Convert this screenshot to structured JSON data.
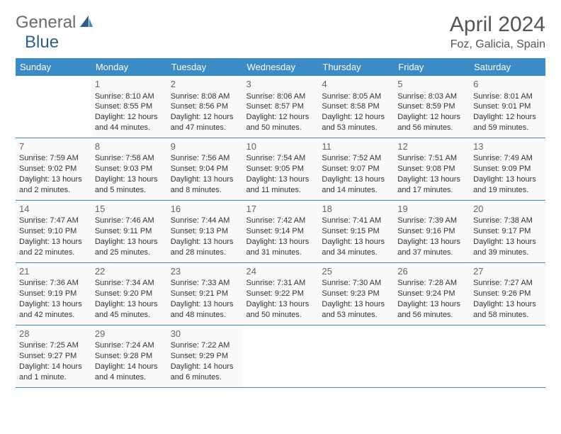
{
  "brand": {
    "part1": "General",
    "part2": "Blue"
  },
  "title": "April 2024",
  "location": "Foz, Galicia, Spain",
  "colors": {
    "header_bg": "#3b8bc6",
    "header_text": "#ffffff",
    "cell_bg": "#fafafa",
    "border": "#3b8bc6",
    "text": "#333333",
    "title_color": "#555555"
  },
  "weekdays": [
    "Sunday",
    "Monday",
    "Tuesday",
    "Wednesday",
    "Thursday",
    "Friday",
    "Saturday"
  ],
  "weeks": [
    [
      null,
      {
        "d": "1",
        "sr": "Sunrise: 8:10 AM",
        "ss": "Sunset: 8:55 PM",
        "dl1": "Daylight: 12 hours",
        "dl2": "and 44 minutes."
      },
      {
        "d": "2",
        "sr": "Sunrise: 8:08 AM",
        "ss": "Sunset: 8:56 PM",
        "dl1": "Daylight: 12 hours",
        "dl2": "and 47 minutes."
      },
      {
        "d": "3",
        "sr": "Sunrise: 8:06 AM",
        "ss": "Sunset: 8:57 PM",
        "dl1": "Daylight: 12 hours",
        "dl2": "and 50 minutes."
      },
      {
        "d": "4",
        "sr": "Sunrise: 8:05 AM",
        "ss": "Sunset: 8:58 PM",
        "dl1": "Daylight: 12 hours",
        "dl2": "and 53 minutes."
      },
      {
        "d": "5",
        "sr": "Sunrise: 8:03 AM",
        "ss": "Sunset: 8:59 PM",
        "dl1": "Daylight: 12 hours",
        "dl2": "and 56 minutes."
      },
      {
        "d": "6",
        "sr": "Sunrise: 8:01 AM",
        "ss": "Sunset: 9:01 PM",
        "dl1": "Daylight: 12 hours",
        "dl2": "and 59 minutes."
      }
    ],
    [
      {
        "d": "7",
        "sr": "Sunrise: 7:59 AM",
        "ss": "Sunset: 9:02 PM",
        "dl1": "Daylight: 13 hours",
        "dl2": "and 2 minutes."
      },
      {
        "d": "8",
        "sr": "Sunrise: 7:58 AM",
        "ss": "Sunset: 9:03 PM",
        "dl1": "Daylight: 13 hours",
        "dl2": "and 5 minutes."
      },
      {
        "d": "9",
        "sr": "Sunrise: 7:56 AM",
        "ss": "Sunset: 9:04 PM",
        "dl1": "Daylight: 13 hours",
        "dl2": "and 8 minutes."
      },
      {
        "d": "10",
        "sr": "Sunrise: 7:54 AM",
        "ss": "Sunset: 9:05 PM",
        "dl1": "Daylight: 13 hours",
        "dl2": "and 11 minutes."
      },
      {
        "d": "11",
        "sr": "Sunrise: 7:52 AM",
        "ss": "Sunset: 9:07 PM",
        "dl1": "Daylight: 13 hours",
        "dl2": "and 14 minutes."
      },
      {
        "d": "12",
        "sr": "Sunrise: 7:51 AM",
        "ss": "Sunset: 9:08 PM",
        "dl1": "Daylight: 13 hours",
        "dl2": "and 17 minutes."
      },
      {
        "d": "13",
        "sr": "Sunrise: 7:49 AM",
        "ss": "Sunset: 9:09 PM",
        "dl1": "Daylight: 13 hours",
        "dl2": "and 19 minutes."
      }
    ],
    [
      {
        "d": "14",
        "sr": "Sunrise: 7:47 AM",
        "ss": "Sunset: 9:10 PM",
        "dl1": "Daylight: 13 hours",
        "dl2": "and 22 minutes."
      },
      {
        "d": "15",
        "sr": "Sunrise: 7:46 AM",
        "ss": "Sunset: 9:11 PM",
        "dl1": "Daylight: 13 hours",
        "dl2": "and 25 minutes."
      },
      {
        "d": "16",
        "sr": "Sunrise: 7:44 AM",
        "ss": "Sunset: 9:13 PM",
        "dl1": "Daylight: 13 hours",
        "dl2": "and 28 minutes."
      },
      {
        "d": "17",
        "sr": "Sunrise: 7:42 AM",
        "ss": "Sunset: 9:14 PM",
        "dl1": "Daylight: 13 hours",
        "dl2": "and 31 minutes."
      },
      {
        "d": "18",
        "sr": "Sunrise: 7:41 AM",
        "ss": "Sunset: 9:15 PM",
        "dl1": "Daylight: 13 hours",
        "dl2": "and 34 minutes."
      },
      {
        "d": "19",
        "sr": "Sunrise: 7:39 AM",
        "ss": "Sunset: 9:16 PM",
        "dl1": "Daylight: 13 hours",
        "dl2": "and 37 minutes."
      },
      {
        "d": "20",
        "sr": "Sunrise: 7:38 AM",
        "ss": "Sunset: 9:17 PM",
        "dl1": "Daylight: 13 hours",
        "dl2": "and 39 minutes."
      }
    ],
    [
      {
        "d": "21",
        "sr": "Sunrise: 7:36 AM",
        "ss": "Sunset: 9:19 PM",
        "dl1": "Daylight: 13 hours",
        "dl2": "and 42 minutes."
      },
      {
        "d": "22",
        "sr": "Sunrise: 7:34 AM",
        "ss": "Sunset: 9:20 PM",
        "dl1": "Daylight: 13 hours",
        "dl2": "and 45 minutes."
      },
      {
        "d": "23",
        "sr": "Sunrise: 7:33 AM",
        "ss": "Sunset: 9:21 PM",
        "dl1": "Daylight: 13 hours",
        "dl2": "and 48 minutes."
      },
      {
        "d": "24",
        "sr": "Sunrise: 7:31 AM",
        "ss": "Sunset: 9:22 PM",
        "dl1": "Daylight: 13 hours",
        "dl2": "and 50 minutes."
      },
      {
        "d": "25",
        "sr": "Sunrise: 7:30 AM",
        "ss": "Sunset: 9:23 PM",
        "dl1": "Daylight: 13 hours",
        "dl2": "and 53 minutes."
      },
      {
        "d": "26",
        "sr": "Sunrise: 7:28 AM",
        "ss": "Sunset: 9:24 PM",
        "dl1": "Daylight: 13 hours",
        "dl2": "and 56 minutes."
      },
      {
        "d": "27",
        "sr": "Sunrise: 7:27 AM",
        "ss": "Sunset: 9:26 PM",
        "dl1": "Daylight: 13 hours",
        "dl2": "and 58 minutes."
      }
    ],
    [
      {
        "d": "28",
        "sr": "Sunrise: 7:25 AM",
        "ss": "Sunset: 9:27 PM",
        "dl1": "Daylight: 14 hours",
        "dl2": "and 1 minute."
      },
      {
        "d": "29",
        "sr": "Sunrise: 7:24 AM",
        "ss": "Sunset: 9:28 PM",
        "dl1": "Daylight: 14 hours",
        "dl2": "and 4 minutes."
      },
      {
        "d": "30",
        "sr": "Sunrise: 7:22 AM",
        "ss": "Sunset: 9:29 PM",
        "dl1": "Daylight: 14 hours",
        "dl2": "and 6 minutes."
      },
      null,
      null,
      null,
      null
    ]
  ]
}
